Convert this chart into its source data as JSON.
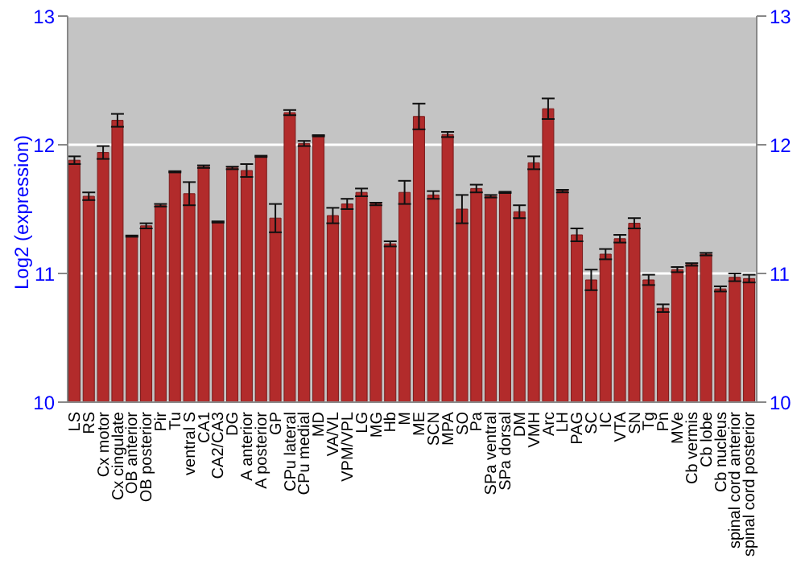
{
  "chart_data": {
    "type": "bar",
    "ylabel": "Log2 (expression)",
    "categories": [
      "LS",
      "RS",
      "Cx motor",
      "Cx cingulate",
      "OB anterior",
      "OB posterior",
      "Pir",
      "Tu",
      "ventral S",
      "CA1",
      "CA2/CA3",
      "DG",
      "A anterior",
      "A posterior",
      "GP",
      "CPu lateral",
      "CPu medial",
      "MD",
      "VA/VL",
      "VPM/VPL",
      "LG",
      "MG",
      "Hb",
      "M",
      "ME",
      "SCN",
      "MPA",
      "SO",
      "Pa",
      "SPa ventral",
      "SPa dorsal",
      "DM",
      "VMH",
      "Arc",
      "LH",
      "PAG",
      "SC",
      "IC",
      "VTA",
      "SN",
      "Tg",
      "Pn",
      "MVe",
      "Cb vermis",
      "Cb lobe",
      "Cb nucleus",
      "spinal cord anterior",
      "spinal cord posterior"
    ],
    "values": [
      11.88,
      11.6,
      11.94,
      12.19,
      11.29,
      11.37,
      11.53,
      11.79,
      11.62,
      11.83,
      11.4,
      11.82,
      11.8,
      11.91,
      11.43,
      12.25,
      12.01,
      12.07,
      11.45,
      11.54,
      11.63,
      11.54,
      11.23,
      11.63,
      12.22,
      11.61,
      12.08,
      11.5,
      11.66,
      11.6,
      11.63,
      11.48,
      11.86,
      12.28,
      11.64,
      11.3,
      10.95,
      11.15,
      11.27,
      11.39,
      10.95,
      10.73,
      11.03,
      11.07,
      11.15,
      10.88,
      10.97,
      10.96
    ],
    "errors": [
      0.03,
      0.03,
      0.05,
      0.05,
      0.005,
      0.02,
      0.01,
      0.005,
      0.09,
      0.01,
      0.005,
      0.01,
      0.05,
      0.005,
      0.11,
      0.02,
      0.02,
      0.005,
      0.06,
      0.04,
      0.03,
      0.01,
      0.02,
      0.09,
      0.1,
      0.03,
      0.02,
      0.11,
      0.03,
      0.01,
      0.005,
      0.05,
      0.05,
      0.08,
      0.01,
      0.05,
      0.08,
      0.04,
      0.03,
      0.04,
      0.04,
      0.03,
      0.02,
      0.01,
      0.01,
      0.02,
      0.03,
      0.03
    ],
    "color": "#b22b2b",
    "ylim": [
      10,
      13
    ],
    "yticks": [
      10,
      11,
      12,
      13
    ],
    "y2lim": [
      10,
      13
    ],
    "y2ticks": [
      10,
      11,
      12,
      13
    ],
    "grid": "y"
  }
}
